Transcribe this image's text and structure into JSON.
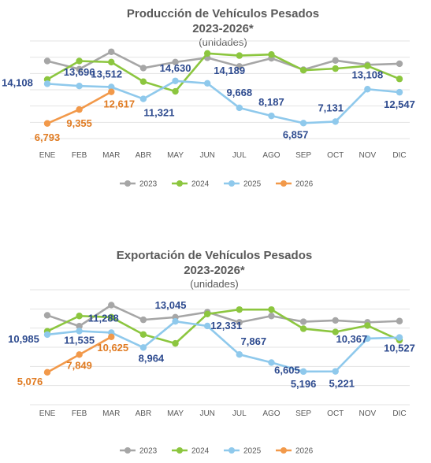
{
  "chart_data": [
    {
      "type": "line",
      "title": "Producción de Vehículos Pesados",
      "subtitle": "2023-2026*",
      "unit": "(unidades)",
      "categories": [
        "ENE",
        "FEB",
        "MAR",
        "ABR",
        "MAY",
        "JUN",
        "JUL",
        "AGO",
        "SEP",
        "OCT",
        "NOV",
        "DIC"
      ],
      "ylim": [
        4000,
        22000
      ],
      "grid": true,
      "legend_position": "bottom",
      "series": [
        {
          "name": "2023",
          "color": "#a6a6a6",
          "values": [
            18300,
            16800,
            20000,
            17000,
            18100,
            18900,
            17300,
            18800,
            16700,
            18400,
            17600,
            17800
          ]
        },
        {
          "name": "2024",
          "color": "#8cc63f",
          "values": [
            14900,
            18300,
            18100,
            14500,
            12700,
            19700,
            19300,
            19500,
            16600,
            16900,
            17400,
            15000
          ]
        },
        {
          "name": "2025",
          "color": "#8fc9ec",
          "values": [
            14108,
            13696,
            13512,
            11321,
            14630,
            14189,
            9668,
            8187,
            6857,
            7131,
            13108,
            12547
          ]
        },
        {
          "name": "2026",
          "color": "#f2994a",
          "values": [
            6793,
            9355,
            12617,
            null,
            null,
            null,
            null,
            null,
            null,
            null,
            null,
            null
          ]
        }
      ],
      "data_labels": [
        {
          "series": 2,
          "index": 0,
          "text": "14,108"
        },
        {
          "series": 2,
          "index": 1,
          "text": "13,696"
        },
        {
          "series": 2,
          "index": 2,
          "text": "13,512"
        },
        {
          "series": 2,
          "index": 3,
          "text": "11,321"
        },
        {
          "series": 2,
          "index": 4,
          "text": "14,630"
        },
        {
          "series": 2,
          "index": 5,
          "text": "14,189"
        },
        {
          "series": 2,
          "index": 6,
          "text": "9,668"
        },
        {
          "series": 2,
          "index": 7,
          "text": "8,187"
        },
        {
          "series": 2,
          "index": 8,
          "text": "6,857"
        },
        {
          "series": 2,
          "index": 9,
          "text": "7,131"
        },
        {
          "series": 2,
          "index": 10,
          "text": "13,108"
        },
        {
          "series": 2,
          "index": 11,
          "text": "12,547"
        },
        {
          "series": 3,
          "index": 0,
          "text": "6,793"
        },
        {
          "series": 3,
          "index": 1,
          "text": "9,355"
        },
        {
          "series": 3,
          "index": 2,
          "text": "12,617"
        }
      ]
    },
    {
      "type": "line",
      "title": "Exportación de Vehículos Pesados",
      "subtitle": "2023-2026*",
      "unit": "(unidades)",
      "categories": [
        "ENE",
        "FEB",
        "MAR",
        "ABR",
        "MAY",
        "JUN",
        "JUL",
        "AGO",
        "SEP",
        "OCT",
        "NOV",
        "DIC"
      ],
      "ylim": [
        0,
        18000
      ],
      "grid": true,
      "legend_position": "bottom",
      "series": [
        {
          "name": "2023",
          "color": "#a6a6a6",
          "values": [
            14000,
            12300,
            15600,
            13300,
            13700,
            14500,
            12900,
            13900,
            13000,
            13200,
            12900,
            13100
          ]
        },
        {
          "name": "2024",
          "color": "#8cc63f",
          "values": [
            11500,
            13900,
            13700,
            11000,
            9600,
            14200,
            14900,
            14900,
            11900,
            11400,
            12400,
            10100
          ]
        },
        {
          "name": "2025",
          "color": "#8fc9ec",
          "values": [
            10985,
            11535,
            11288,
            8964,
            13045,
            12331,
            7867,
            6605,
            5196,
            5221,
            10367,
            10527
          ]
        },
        {
          "name": "2026",
          "color": "#f2994a",
          "values": [
            5076,
            7849,
            10625,
            null,
            null,
            null,
            null,
            null,
            null,
            null,
            null,
            null
          ]
        }
      ],
      "data_labels": [
        {
          "series": 2,
          "index": 0,
          "text": "10,985"
        },
        {
          "series": 2,
          "index": 1,
          "text": "11,535"
        },
        {
          "series": 2,
          "index": 2,
          "text": "11,288"
        },
        {
          "series": 2,
          "index": 3,
          "text": "8,964"
        },
        {
          "series": 2,
          "index": 4,
          "text": "13,045"
        },
        {
          "series": 2,
          "index": 5,
          "text": "12,331"
        },
        {
          "series": 2,
          "index": 6,
          "text": "7,867"
        },
        {
          "series": 2,
          "index": 7,
          "text": "6,605"
        },
        {
          "series": 2,
          "index": 8,
          "text": "5,196"
        },
        {
          "series": 2,
          "index": 9,
          "text": "5,221"
        },
        {
          "series": 2,
          "index": 10,
          "text": "10,367"
        },
        {
          "series": 2,
          "index": 11,
          "text": "10,527"
        },
        {
          "series": 3,
          "index": 0,
          "text": "5,076"
        },
        {
          "series": 3,
          "index": 1,
          "text": "7,849"
        },
        {
          "series": 3,
          "index": 2,
          "text": "10,625"
        }
      ]
    }
  ],
  "label_colors": {
    "2025": "#2e4b8f",
    "2026": "#e07b22"
  }
}
